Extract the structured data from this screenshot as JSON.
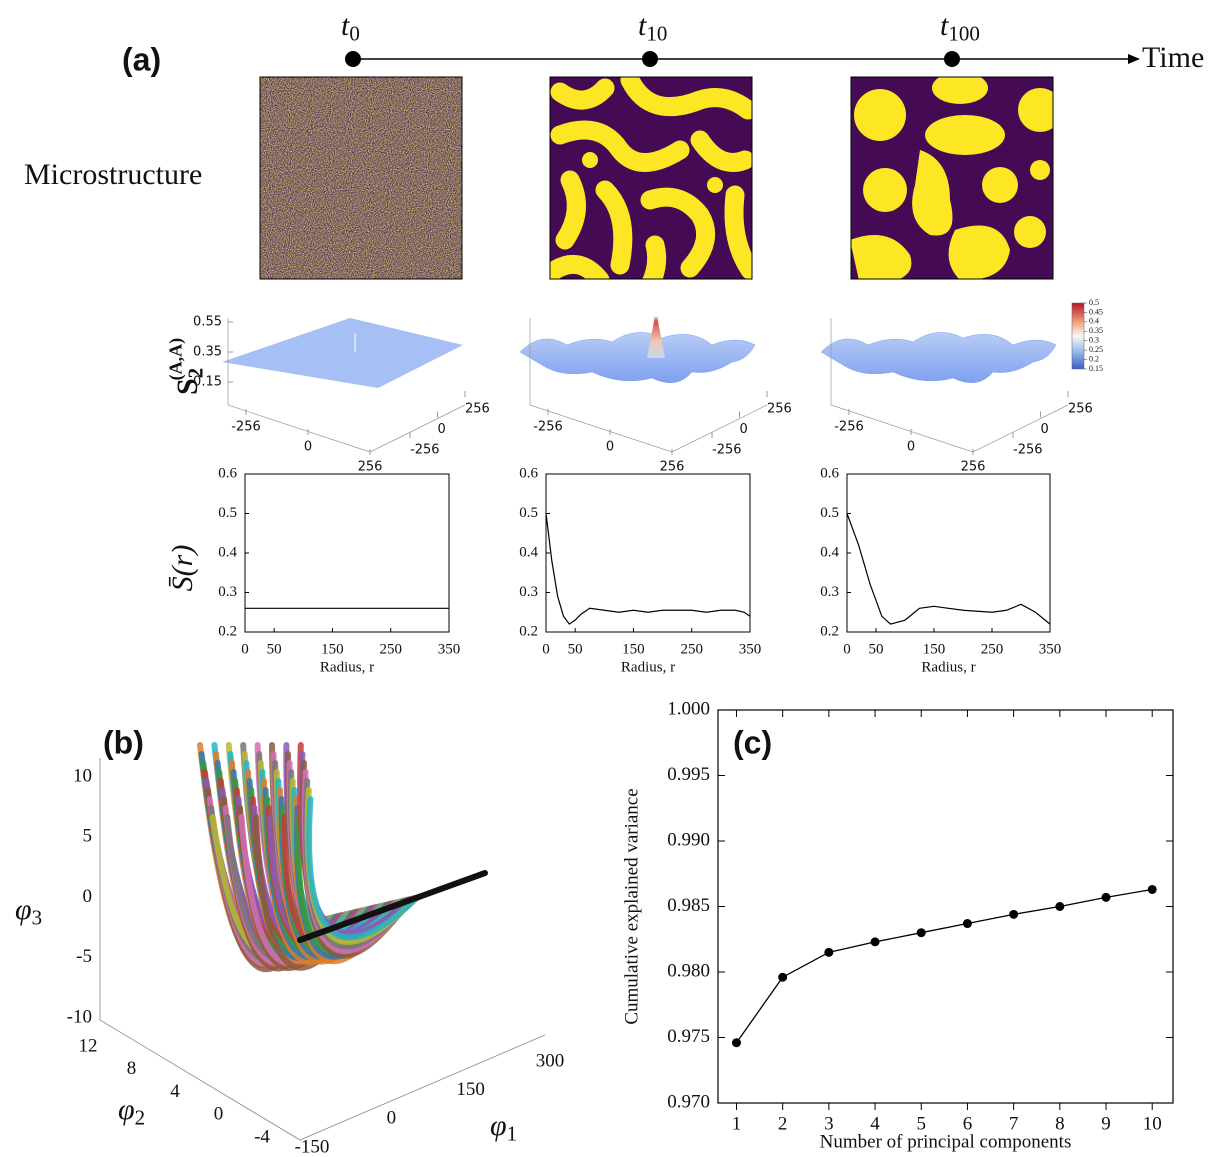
{
  "panel_labels": [
    "(a)",
    "(b)",
    "(c)"
  ],
  "timeline": {
    "axis_label": "Time",
    "points": [
      {
        "symbol": "t",
        "subscript": "0"
      },
      {
        "symbol": "t",
        "subscript": "10"
      },
      {
        "symbol": "t",
        "subscript": "100"
      }
    ]
  },
  "row_label": "Microstructure",
  "chart_data": [
    {
      "type": "surface",
      "zlabel": {
        "symbol": "S",
        "subscript": "2",
        "superscript": "(A,A)"
      },
      "zticks": [
        0.15,
        0.35,
        0.55
      ],
      "xticks": [
        -256,
        0,
        256
      ],
      "yticks": [
        -256,
        0,
        256
      ]
    },
    {
      "type": "surface",
      "xticks": [
        -256,
        0,
        256
      ],
      "yticks": [
        -256,
        0,
        256
      ]
    },
    {
      "type": "surface",
      "xticks": [
        -256,
        0,
        256
      ],
      "yticks": [
        -256,
        0,
        256
      ],
      "colorbar_ticks": [
        0.5,
        0.45,
        0.4,
        0.35,
        0.3,
        0.25,
        0.2,
        0.15
      ]
    },
    {
      "type": "line",
      "ylabel": "S̄(r)",
      "xlabel": "Radius, r",
      "color": "#000000",
      "xlim": [
        0,
        350
      ],
      "xticks": [
        0,
        50,
        150,
        250,
        350
      ],
      "ylim": [
        0.2,
        0.6
      ],
      "yticks": [
        0.2,
        0.3,
        0.4,
        0.5,
        0.6
      ],
      "x": [
        0,
        350
      ],
      "values": [
        0.26,
        0.26
      ]
    },
    {
      "type": "line",
      "xlabel": "Radius, r",
      "color": "#000000",
      "xlim": [
        0,
        350
      ],
      "xticks": [
        0,
        50,
        150,
        250,
        350
      ],
      "ylim": [
        0.2,
        0.6
      ],
      "yticks": [
        0.2,
        0.3,
        0.4,
        0.5,
        0.6
      ],
      "x": [
        0,
        10,
        20,
        30,
        40,
        50,
        60,
        75,
        100,
        125,
        150,
        175,
        200,
        225,
        250,
        275,
        300,
        325,
        340,
        350
      ],
      "values": [
        0.5,
        0.38,
        0.29,
        0.24,
        0.22,
        0.23,
        0.245,
        0.26,
        0.255,
        0.25,
        0.255,
        0.25,
        0.255,
        0.255,
        0.255,
        0.25,
        0.255,
        0.255,
        0.25,
        0.24
      ]
    },
    {
      "type": "line",
      "xlabel": "Radius, r",
      "color": "#000000",
      "xlim": [
        0,
        350
      ],
      "xticks": [
        0,
        50,
        150,
        250,
        350
      ],
      "ylim": [
        0.2,
        0.6
      ],
      "yticks": [
        0.2,
        0.3,
        0.4,
        0.5,
        0.6
      ],
      "x": [
        0,
        20,
        40,
        60,
        75,
        100,
        125,
        150,
        175,
        200,
        250,
        275,
        300,
        325,
        350
      ],
      "values": [
        0.5,
        0.42,
        0.32,
        0.24,
        0.22,
        0.23,
        0.26,
        0.265,
        0.26,
        0.255,
        0.25,
        0.255,
        0.27,
        0.25,
        0.22
      ]
    },
    {
      "type": "scatter3d",
      "xlabel": {
        "symbol": "φ",
        "subscript": "1"
      },
      "ylabel": {
        "symbol": "φ",
        "subscript": "2"
      },
      "zlabel": {
        "symbol": "φ",
        "subscript": "3"
      },
      "xticks": [
        -150,
        0,
        150,
        300
      ],
      "yticks": [
        -4,
        0,
        4,
        8,
        12
      ],
      "zticks": [
        -10,
        -5,
        0,
        5,
        10
      ]
    },
    {
      "type": "line",
      "markers": true,
      "xlabel": "Number of principal components",
      "ylabel": "Cumulative explained variance",
      "color": "#000000",
      "xlim": [
        0.6,
        10.45
      ],
      "xticks": [
        1,
        2,
        3,
        4,
        5,
        6,
        7,
        8,
        9,
        10
      ],
      "ylim": [
        0.97,
        1.0
      ],
      "yticks": [
        {
          "value": 0.97,
          "label": "0.970"
        },
        0.975,
        {
          "value": 0.98,
          "label": "0.980"
        },
        0.985,
        {
          "value": 0.99,
          "label": "0.990"
        },
        0.995,
        {
          "value": 1.0,
          "label": "1.000"
        }
      ],
      "x": [
        1,
        2,
        3,
        4,
        5,
        6,
        7,
        8,
        9,
        10
      ],
      "values": [
        0.9746,
        0.9796,
        0.9815,
        0.9823,
        0.983,
        0.9837,
        0.9844,
        0.985,
        0.9857,
        0.9863
      ]
    }
  ]
}
